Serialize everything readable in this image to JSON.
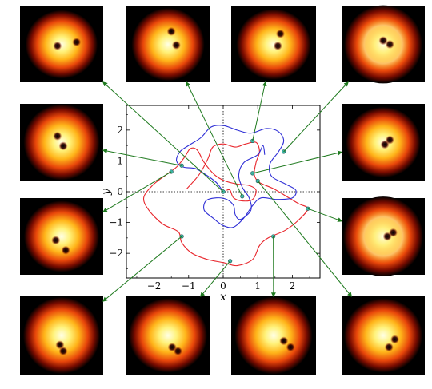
{
  "axes": {
    "xlabel": "x",
    "ylabel": "y",
    "xlim": [
      -2.8,
      2.8
    ],
    "ylim": [
      -2.8,
      2.8
    ],
    "xticks": [
      -2,
      -1,
      0,
      1,
      2
    ],
    "yticks": [
      -2,
      -1,
      0,
      1,
      2
    ],
    "xtick_labels": [
      "−2",
      "−1",
      "0",
      "1",
      "2"
    ],
    "ytick_labels": [
      "−2",
      "−1",
      "0",
      "1",
      "2"
    ],
    "zero_lines": "dotted"
  },
  "colors": {
    "red_curve": "#e8262c",
    "blue_curve": "#2f2fd6",
    "marker_fill": "#3fb4a8",
    "marker_edge": "#1c4f4a",
    "arrow": "#1f7a1f"
  },
  "curves": {
    "red": [
      [
        -1.05,
        0.1
      ],
      [
        -0.7,
        0.55
      ],
      [
        -0.45,
        1.05
      ],
      [
        -0.3,
        1.45
      ],
      [
        0.0,
        1.55
      ],
      [
        0.35,
        1.45
      ],
      [
        0.65,
        1.55
      ],
      [
        0.95,
        1.6
      ],
      [
        1.05,
        1.3
      ],
      [
        0.95,
        0.95
      ],
      [
        0.9,
        0.55
      ],
      [
        1.05,
        0.3
      ],
      [
        1.45,
        0.1
      ],
      [
        1.9,
        -0.2
      ],
      [
        2.2,
        -0.4
      ],
      [
        2.45,
        -0.55
      ],
      [
        2.2,
        -0.9
      ],
      [
        1.8,
        -1.25
      ],
      [
        1.3,
        -1.5
      ],
      [
        1.05,
        -1.75
      ],
      [
        0.85,
        -2.2
      ],
      [
        0.4,
        -2.4
      ],
      [
        0.0,
        -2.3
      ],
      [
        -0.45,
        -2.2
      ],
      [
        -0.9,
        -2.0
      ],
      [
        -1.2,
        -1.65
      ],
      [
        -1.3,
        -1.3
      ],
      [
        -1.75,
        -1.05
      ],
      [
        -2.15,
        -0.6
      ],
      [
        -2.3,
        -0.2
      ],
      [
        -2.05,
        0.2
      ],
      [
        -1.65,
        0.55
      ],
      [
        -1.35,
        0.8
      ],
      [
        -1.1,
        1.15
      ],
      [
        -0.95,
        1.4
      ],
      [
        -0.75,
        1.35
      ],
      [
        -0.55,
        0.95
      ],
      [
        -0.25,
        0.55
      ],
      [
        0.05,
        0.35
      ],
      [
        0.4,
        0.25
      ],
      [
        0.75,
        0.2
      ],
      [
        0.95,
        0.05
      ],
      [
        0.85,
        -0.25
      ],
      [
        0.55,
        -0.3
      ],
      [
        0.3,
        -0.2
      ],
      [
        0.2,
        0.05
      ],
      [
        0.1,
        0.05
      ]
    ],
    "blue": [
      [
        0.0,
        0.0
      ],
      [
        -0.2,
        0.3
      ],
      [
        -0.5,
        0.55
      ],
      [
        -0.8,
        0.75
      ],
      [
        -1.15,
        0.8
      ],
      [
        -1.35,
        1.0
      ],
      [
        -1.25,
        1.3
      ],
      [
        -1.0,
        1.5
      ],
      [
        -0.65,
        1.75
      ],
      [
        -0.35,
        2.1
      ],
      [
        0.0,
        2.15
      ],
      [
        0.4,
        2.0
      ],
      [
        0.8,
        1.9
      ],
      [
        1.25,
        2.05
      ],
      [
        1.6,
        1.95
      ],
      [
        1.75,
        1.65
      ],
      [
        1.6,
        1.3
      ],
      [
        1.35,
        0.9
      ],
      [
        1.4,
        0.5
      ],
      [
        1.8,
        0.25
      ],
      [
        2.1,
        0.05
      ],
      [
        2.0,
        -0.2
      ],
      [
        1.55,
        -0.25
      ],
      [
        1.1,
        -0.2
      ],
      [
        0.85,
        -0.45
      ],
      [
        0.6,
        -0.85
      ],
      [
        0.3,
        -1.15
      ],
      [
        0.0,
        -1.1
      ],
      [
        -0.3,
        -0.85
      ],
      [
        -0.55,
        -0.6
      ],
      [
        -0.5,
        -0.3
      ],
      [
        -0.2,
        -0.2
      ],
      [
        0.1,
        -0.25
      ],
      [
        0.3,
        -0.45
      ],
      [
        0.35,
        -0.75
      ],
      [
        0.5,
        -0.9
      ],
      [
        0.8,
        -0.6
      ],
      [
        0.75,
        -0.2
      ],
      [
        0.55,
        0.15
      ],
      [
        0.45,
        0.55
      ],
      [
        0.6,
        0.95
      ],
      [
        1.0,
        1.2
      ],
      [
        1.15,
        1.5
      ],
      [
        1.2,
        1.2
      ]
    ]
  },
  "markers": [
    {
      "x": 0.0,
      "y": 0.0
    },
    {
      "x": -1.2,
      "y": 0.85
    },
    {
      "x": -1.5,
      "y": 0.65
    },
    {
      "x": 0.85,
      "y": 1.65
    },
    {
      "x": 1.75,
      "y": 1.3
    },
    {
      "x": 0.85,
      "y": 0.6
    },
    {
      "x": 1.0,
      "y": 0.35
    },
    {
      "x": 0.55,
      "y": -0.15
    },
    {
      "x": 2.45,
      "y": -0.55
    },
    {
      "x": 1.45,
      "y": -1.45
    },
    {
      "x": 0.2,
      "y": -2.25
    },
    {
      "x": -1.2,
      "y": -1.45
    }
  ],
  "panels": [
    {
      "id": "p1",
      "vortices": [
        [
          0.45,
          0.52
        ],
        [
          0.68,
          0.47
        ]
      ],
      "spread": 0.55,
      "twist": 0
    },
    {
      "id": "p2",
      "vortices": [
        [
          0.54,
          0.33
        ],
        [
          0.6,
          0.51
        ]
      ],
      "spread": 0.6,
      "twist": 1
    },
    {
      "id": "p3",
      "vortices": [
        [
          0.58,
          0.36
        ],
        [
          0.55,
          0.52
        ]
      ],
      "spread": 0.7,
      "twist": 2
    },
    {
      "id": "p4",
      "vortices": [
        [
          0.5,
          0.45
        ],
        [
          0.58,
          0.5
        ]
      ],
      "spread": 0.95,
      "twist": 3
    },
    {
      "id": "p5",
      "vortices": [
        [
          0.45,
          0.42
        ],
        [
          0.52,
          0.55
        ]
      ],
      "spread": 0.75,
      "twist": 1
    },
    {
      "id": "p6",
      "vortices": [
        [
          0.52,
          0.53
        ],
        [
          0.58,
          0.47
        ]
      ],
      "spread": 0.65,
      "twist": 0
    },
    {
      "id": "p7",
      "vortices": [
        [
          0.43,
          0.55
        ],
        [
          0.55,
          0.68
        ]
      ],
      "spread": 0.7,
      "twist": 2
    },
    {
      "id": "p8",
      "vortices": [
        [
          0.55,
          0.5
        ],
        [
          0.62,
          0.45
        ]
      ],
      "spread": 1.0,
      "twist": 3
    },
    {
      "id": "p9",
      "vortices": [
        [
          0.48,
          0.62
        ],
        [
          0.52,
          0.7
        ]
      ],
      "spread": 0.7,
      "twist": 1
    },
    {
      "id": "p10",
      "vortices": [
        [
          0.55,
          0.65
        ],
        [
          0.62,
          0.7
        ]
      ],
      "spread": 0.8,
      "twist": 2
    },
    {
      "id": "p11",
      "vortices": [
        [
          0.62,
          0.57
        ],
        [
          0.7,
          0.65
        ]
      ],
      "spread": 0.75,
      "twist": 3
    },
    {
      "id": "p12",
      "vortices": [
        [
          0.57,
          0.65
        ],
        [
          0.64,
          0.55
        ]
      ],
      "spread": 0.8,
      "twist": 0
    }
  ],
  "arrows": [
    {
      "panel": "p1",
      "marker": 0
    },
    {
      "panel": "p2",
      "marker": 7
    },
    {
      "panel": "p3",
      "marker": 3
    },
    {
      "panel": "p4",
      "marker": 4
    },
    {
      "panel": "p5",
      "marker": 1
    },
    {
      "panel": "p6",
      "marker": 5
    },
    {
      "panel": "p7",
      "marker": 2
    },
    {
      "panel": "p8",
      "marker": 8
    },
    {
      "panel": "p9",
      "marker": 11
    },
    {
      "panel": "p10",
      "marker": 10
    },
    {
      "panel": "p11",
      "marker": 9
    },
    {
      "panel": "p12",
      "marker": 6
    }
  ]
}
